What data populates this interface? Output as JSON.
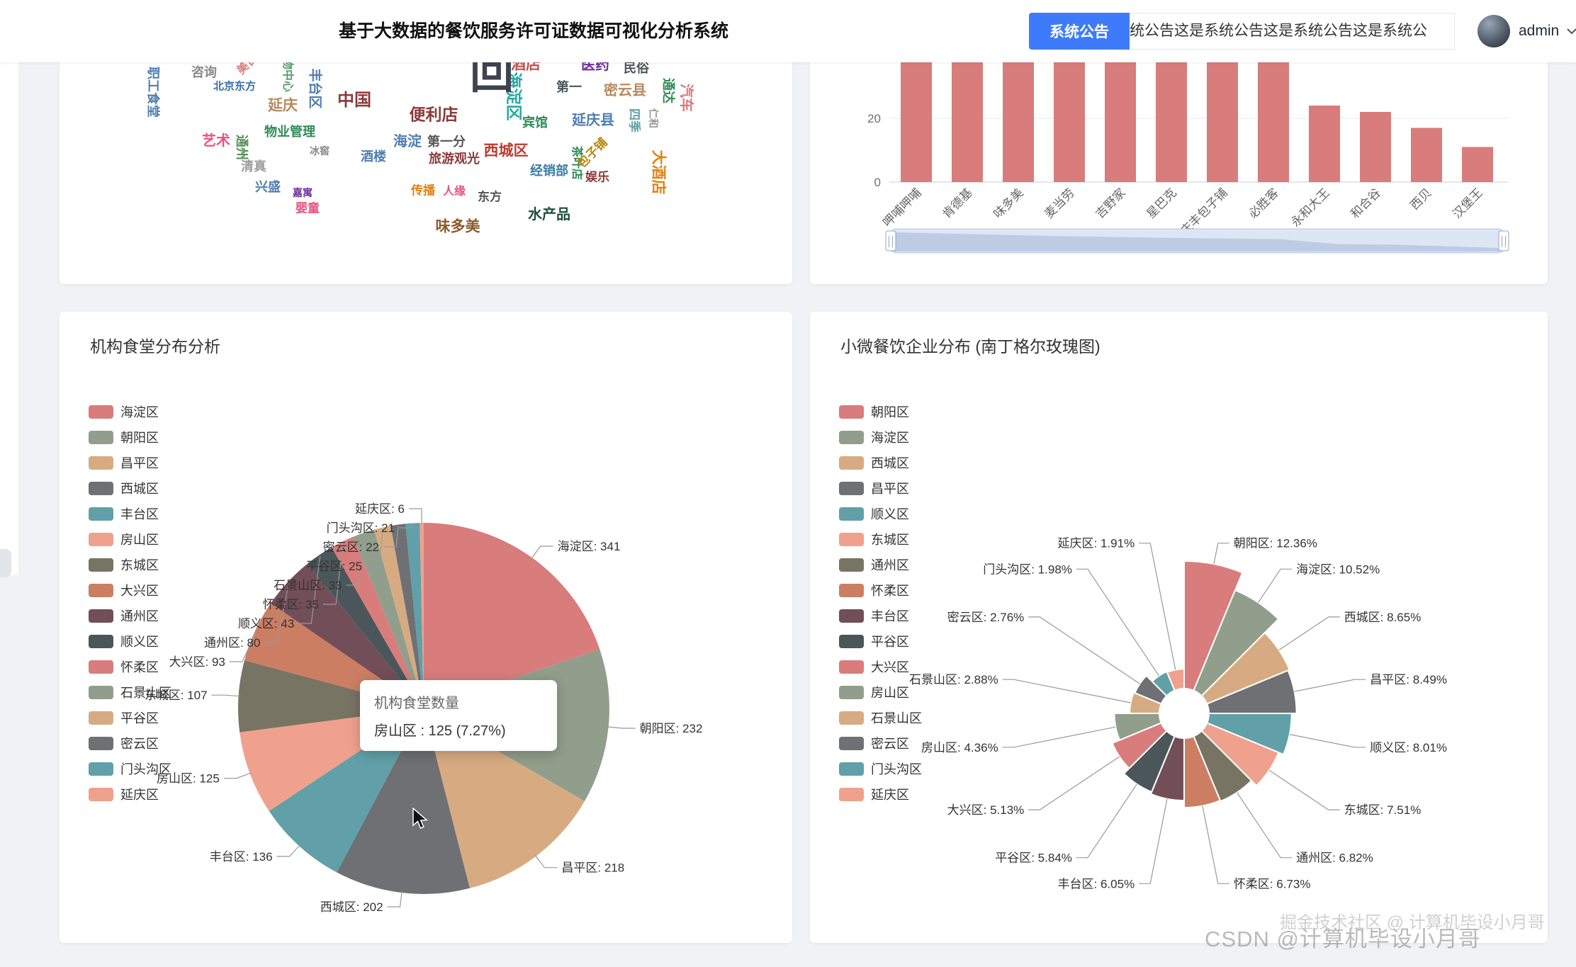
{
  "header": {
    "title": "基于大数据的餐饮服务许可证数据可视化分析系统",
    "announcement_button": "系统公告",
    "announcement_text": "统公告这是系统公告这是系统公告这是系统公",
    "user": "admin"
  },
  "palette": [
    "#d87c7c",
    "#919e8b",
    "#d7ab82",
    "#6e7074",
    "#61a0a8",
    "#efa18d",
    "#787464",
    "#cc7e63",
    "#724e58",
    "#4b565b"
  ],
  "watermarks": {
    "juejin": "掘金技术社区 @ 计算机毕设小月哥",
    "csdn": "CSDN @计算机毕设小月哥"
  },
  "chart_data": [
    {
      "type": "wordcloud",
      "words": [
        {
          "t": "职工食堂",
          "x": 132,
          "y": 130,
          "s": 18,
          "c": "#4f7db0",
          "r": 90
        },
        {
          "t": "北京东方",
          "x": 247,
          "y": 122,
          "s": 15,
          "c": "#3a6ea5",
          "r": 0
        },
        {
          "t": "咨询",
          "x": 204,
          "y": 102,
          "s": 18,
          "c": "#8a8a8a",
          "r": 0
        },
        {
          "t": "美食城",
          "x": 271,
          "y": 86,
          "s": 16,
          "c": "#d87c7c",
          "r": -45
        },
        {
          "t": "购物中心",
          "x": 321,
          "y": 98,
          "s": 16,
          "c": "#5a9e6f",
          "r": 90
        },
        {
          "t": "延庆",
          "x": 315,
          "y": 149,
          "s": 21,
          "c": "#b58a5f",
          "r": 0
        },
        {
          "t": "丰台区",
          "x": 360,
          "y": 125,
          "s": 19,
          "c": "#4f7db0",
          "r": 90
        },
        {
          "t": "中国",
          "x": 416,
          "y": 142,
          "s": 24,
          "c": "#8a3b3b",
          "r": 0
        },
        {
          "t": "海淀",
          "x": 491,
          "y": 200,
          "s": 20,
          "c": "#4f7db0",
          "r": 0
        },
        {
          "t": "第一分",
          "x": 546,
          "y": 200,
          "s": 18,
          "c": "#555555",
          "r": 0
        },
        {
          "t": "便利店",
          "x": 528,
          "y": 162,
          "s": 23,
          "c": "#8a3b3b",
          "r": 0
        },
        {
          "t": "酒楼",
          "x": 443,
          "y": 221,
          "s": 18,
          "c": "#4f7db0",
          "r": 0
        },
        {
          "t": "旅游观光",
          "x": 557,
          "y": 224,
          "s": 18,
          "c": "#8a3b3b",
          "r": 0
        },
        {
          "t": "艺术",
          "x": 221,
          "y": 199,
          "s": 20,
          "c": "#e75480",
          "r": 0
        },
        {
          "t": "通州",
          "x": 257,
          "y": 208,
          "s": 18,
          "c": "#5a8f5a",
          "r": 90
        },
        {
          "t": "物业管理",
          "x": 325,
          "y": 186,
          "s": 18,
          "c": "#2e8b57",
          "r": 0
        },
        {
          "t": "清真",
          "x": 274,
          "y": 235,
          "s": 18,
          "c": "#9e9e9e",
          "r": 0
        },
        {
          "t": "兴盛",
          "x": 294,
          "y": 264,
          "s": 18,
          "c": "#4f7db0",
          "r": 0
        },
        {
          "t": "婴童",
          "x": 350,
          "y": 294,
          "s": 17,
          "c": "#e75480",
          "r": 0
        },
        {
          "t": "味多美",
          "x": 562,
          "y": 320,
          "s": 21,
          "c": "#8a5a2b",
          "r": 0
        },
        {
          "t": "水产品",
          "x": 691,
          "y": 303,
          "s": 20,
          "c": "#1d4d3b",
          "r": 0
        },
        {
          "t": "传播",
          "x": 513,
          "y": 269,
          "s": 17,
          "c": "#e08214",
          "r": 0
        },
        {
          "t": "人缘",
          "x": 557,
          "y": 271,
          "s": 16,
          "c": "#e75480",
          "r": 0
        },
        {
          "t": "东方",
          "x": 607,
          "y": 278,
          "s": 17,
          "c": "#555555",
          "r": 0
        },
        {
          "t": "西城区",
          "x": 630,
          "y": 213,
          "s": 21,
          "c": "#c0392b",
          "r": 0
        },
        {
          "t": "经销部",
          "x": 691,
          "y": 241,
          "s": 18,
          "c": "#3a7ca5",
          "r": 0
        },
        {
          "t": "茶叶店",
          "x": 729,
          "y": 230,
          "s": 16,
          "c": "#2e8b57",
          "r": 90
        },
        {
          "t": "包子铺",
          "x": 752,
          "y": 216,
          "s": 17,
          "c": "#b8860b",
          "r": -45
        },
        {
          "t": "娱乐",
          "x": 759,
          "y": 250,
          "s": 17,
          "c": "#8a3b3b",
          "r": 0
        },
        {
          "t": "宾馆",
          "x": 671,
          "y": 173,
          "s": 18,
          "c": "#2e8b57",
          "r": 0
        },
        {
          "t": "海淀区",
          "x": 641,
          "y": 136,
          "s": 23,
          "c": "#2aa8a0",
          "r": 90
        },
        {
          "t": "第一",
          "x": 719,
          "y": 123,
          "s": 18,
          "c": "#4b565b",
          "r": 0
        },
        {
          "t": "密云县",
          "x": 798,
          "y": 128,
          "s": 20,
          "c": "#b58a5f",
          "r": 0
        },
        {
          "t": "延庆县",
          "x": 753,
          "y": 170,
          "s": 20,
          "c": "#4f7db0",
          "r": 0
        },
        {
          "t": "四季",
          "x": 811,
          "y": 170,
          "s": 17,
          "c": "#61a0a8",
          "r": 90
        },
        {
          "t": "大酒店",
          "x": 845,
          "y": 243,
          "s": 21,
          "c": "#e08214",
          "r": 90
        },
        {
          "t": "汽车",
          "x": 884,
          "y": 138,
          "s": 20,
          "c": "#d87c7c",
          "r": 90
        },
        {
          "t": "通达",
          "x": 859,
          "y": 128,
          "s": 18,
          "c": "#2e8b57",
          "r": 90
        },
        {
          "t": "酒店",
          "x": 658,
          "y": 91,
          "s": 21,
          "c": "#c0504d",
          "r": 0
        },
        {
          "t": "医药",
          "x": 756,
          "y": 92,
          "s": 20,
          "c": "#7030a0",
          "r": 0
        },
        {
          "t": "民俗",
          "x": 814,
          "y": 96,
          "s": 18,
          "c": "#4b565b",
          "r": 0
        },
        {
          "t": "回",
          "x": 610,
          "y": 104,
          "s": 62,
          "c": "#3d4450",
          "r": 0
        },
        {
          "t": "仁和",
          "x": 838,
          "y": 167,
          "s": 14,
          "c": "#999999",
          "r": 90
        },
        {
          "t": "嘉寓",
          "x": 343,
          "y": 272,
          "s": 14,
          "c": "#7030a0",
          "r": 0
        },
        {
          "t": "冰窖",
          "x": 367,
          "y": 213,
          "s": 14,
          "c": "#888888",
          "r": 0
        }
      ]
    },
    {
      "type": "bar",
      "categories": [
        "呷哺呷哺",
        "肯德基",
        "味多美",
        "麦当劳",
        "吉野家",
        "星巴克",
        "庆丰包子铺",
        "必胜客",
        "永和大王",
        "和合谷",
        "西贝",
        "汉堡王"
      ],
      "values": [
        62,
        58,
        54,
        50,
        47,
        44,
        42,
        40,
        24,
        22,
        17,
        11
      ],
      "color": "#d87c7c",
      "y_ticks": [
        0,
        20
      ]
    },
    {
      "type": "pie",
      "title": "机构食堂分布分析",
      "series_name": "机构食堂数量",
      "items": [
        {
          "name": "海淀区",
          "value": 341
        },
        {
          "name": "朝阳区",
          "value": 232
        },
        {
          "name": "昌平区",
          "value": 218
        },
        {
          "name": "西城区",
          "value": 202
        },
        {
          "name": "丰台区",
          "value": 136
        },
        {
          "name": "房山区",
          "value": 125
        },
        {
          "name": "东城区",
          "value": 107
        },
        {
          "name": "大兴区",
          "value": 93
        },
        {
          "name": "通州区",
          "value": 80
        },
        {
          "name": "顺义区",
          "value": 43
        },
        {
          "name": "怀柔区",
          "value": 35
        },
        {
          "name": "石景山区",
          "value": 33
        },
        {
          "name": "平谷区",
          "value": 25
        },
        {
          "name": "密云区",
          "value": 22
        },
        {
          "name": "门头沟区",
          "value": 21
        },
        {
          "name": "延庆区",
          "value": 6
        }
      ],
      "tooltip": {
        "line1": "机构食堂数量",
        "line2": "房山区 : 125 (7.27%)"
      }
    },
    {
      "type": "rose",
      "title": "小微餐饮企业分布 (南丁格尔玫瑰图)",
      "unit": "%",
      "items": [
        {
          "name": "朝阳区",
          "value": 12.36
        },
        {
          "name": "海淀区",
          "value": 10.52
        },
        {
          "name": "西城区",
          "value": 8.65
        },
        {
          "name": "昌平区",
          "value": 8.49
        },
        {
          "name": "顺义区",
          "value": 8.01
        },
        {
          "name": "东城区",
          "value": 7.51
        },
        {
          "name": "通州区",
          "value": 6.82
        },
        {
          "name": "怀柔区",
          "value": 6.73
        },
        {
          "name": "丰台区",
          "value": 6.05
        },
        {
          "name": "平谷区",
          "value": 5.84
        },
        {
          "name": "大兴区",
          "value": 5.13
        },
        {
          "name": "房山区",
          "value": 4.36
        },
        {
          "name": "石景山区",
          "value": 2.88
        },
        {
          "name": "密云区",
          "value": 2.76
        },
        {
          "name": "门头沟区",
          "value": 1.98
        },
        {
          "name": "延庆区",
          "value": 1.91
        }
      ]
    }
  ]
}
